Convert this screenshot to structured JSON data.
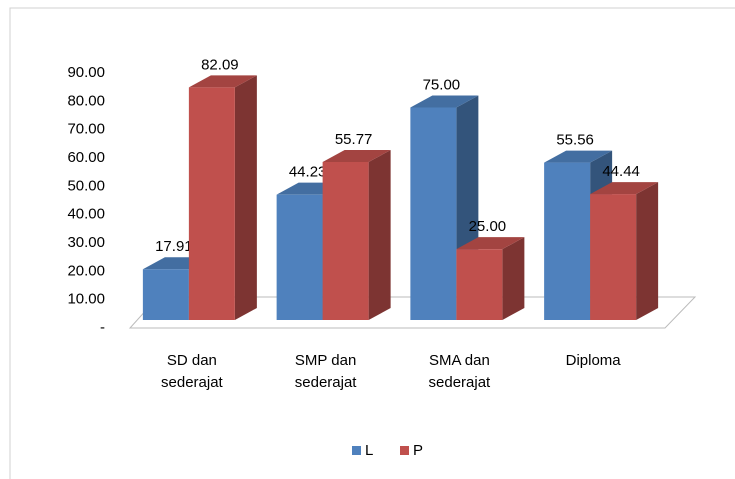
{
  "chart_data": {
    "type": "bar3d",
    "categories": [
      "SD dan sederajat",
      "SMP dan sederajat",
      "SMA dan sederajat",
      "Diploma"
    ],
    "series": [
      {
        "name": "L",
        "color": "#4f81bd",
        "values": [
          17.91,
          44.23,
          75,
          55.56
        ],
        "value_labels": [
          "17.91",
          "44.23",
          "75.00",
          "55.56"
        ]
      },
      {
        "name": "P",
        "color": "#c0504d",
        "values": [
          82.09,
          55.77,
          25,
          44.44
        ],
        "value_labels": [
          "82.09",
          "55.77",
          "25.00",
          "44.44"
        ]
      }
    ],
    "ylim": [
      0,
      90
    ],
    "yticks": [
      {
        "value": 0,
        "label": "-"
      },
      {
        "value": 10,
        "label": "10.00"
      },
      {
        "value": 20,
        "label": "20.00"
      },
      {
        "value": 30,
        "label": "30.00"
      },
      {
        "value": 40,
        "label": "40.00"
      },
      {
        "value": 50,
        "label": "50.00"
      },
      {
        "value": 60,
        "label": "60.00"
      },
      {
        "value": 70,
        "label": "70.00"
      },
      {
        "value": 80,
        "label": "80.00"
      },
      {
        "value": 90,
        "label": "90.00"
      }
    ],
    "legend": "bottom"
  }
}
